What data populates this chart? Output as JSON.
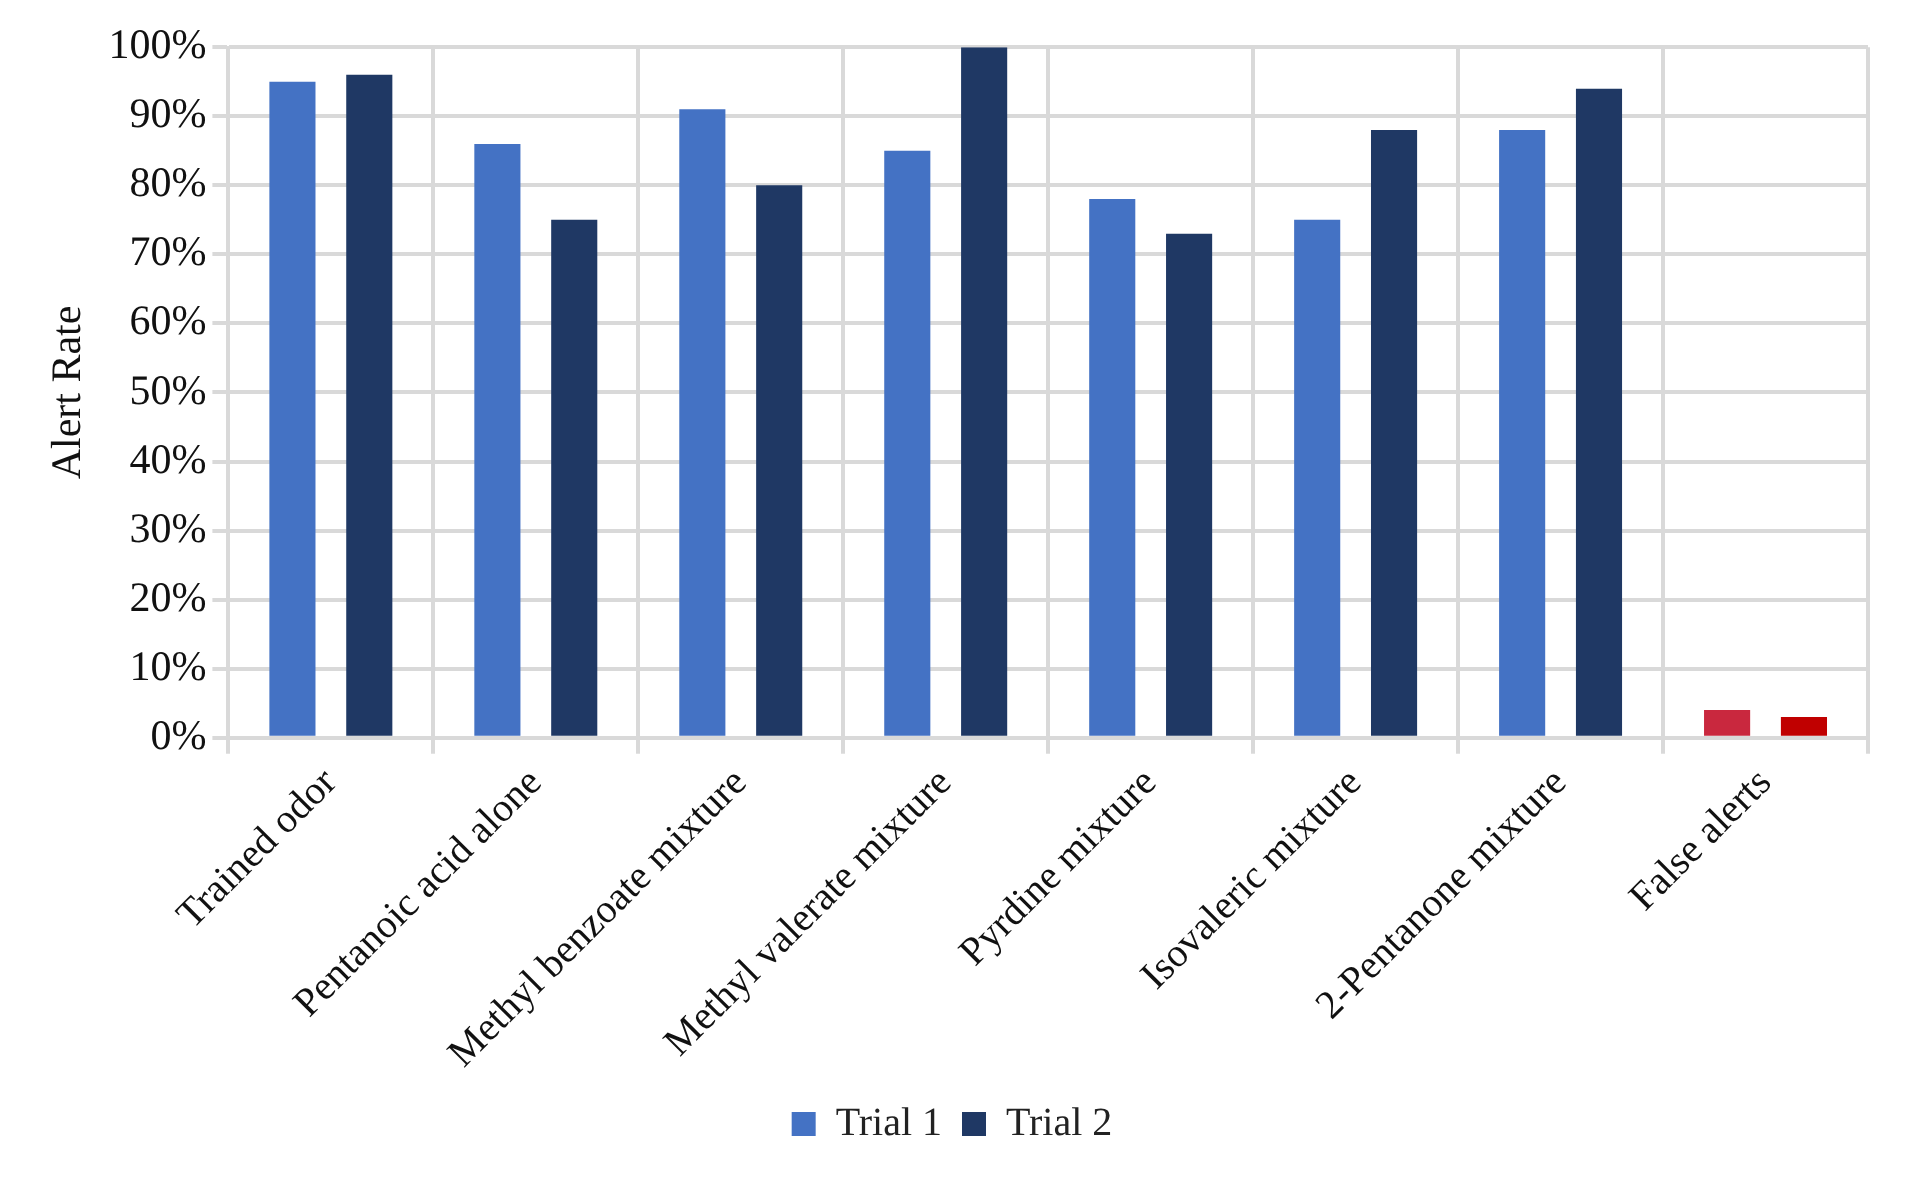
{
  "chart_data": {
    "type": "bar",
    "ylabel": "Alert Rate",
    "categories": [
      "Trained odor",
      "Pentanoic acid alone",
      "Methyl benzoate mixture",
      "Methyl valerate mixture",
      "Pyrdine mixture",
      "Isovaleric mixture",
      "2-Pentanone mixture",
      "False alerts"
    ],
    "series": [
      {
        "name": "Trial 1",
        "color": "#4472c4",
        "colors": [
          "#4472c4",
          "#4472c4",
          "#4472c4",
          "#4472c4",
          "#4472c4",
          "#4472c4",
          "#4472c4",
          "#c9283e"
        ],
        "values": [
          95,
          86,
          91,
          85,
          78,
          75,
          88,
          4
        ]
      },
      {
        "name": "Trial 2",
        "color": "#1f3864",
        "colors": [
          "#1f3864",
          "#1f3864",
          "#1f3864",
          "#1f3864",
          "#1f3864",
          "#1f3864",
          "#1f3864",
          "#c00000"
        ],
        "values": [
          96,
          75,
          80,
          100,
          73,
          88,
          94,
          3
        ]
      }
    ],
    "ylim": [
      0,
      100
    ],
    "yticks": [
      {
        "value": 0,
        "label": "0%"
      },
      {
        "value": 10,
        "label": "10%"
      },
      {
        "value": 20,
        "label": "20%"
      },
      {
        "value": 30,
        "label": "30%"
      },
      {
        "value": 40,
        "label": "40%"
      },
      {
        "value": 50,
        "label": "50%"
      },
      {
        "value": 60,
        "label": "60%"
      },
      {
        "value": 70,
        "label": "70%"
      },
      {
        "value": 80,
        "label": "80%"
      },
      {
        "value": 90,
        "label": "90%"
      },
      {
        "value": 100,
        "label": "100%"
      }
    ],
    "grid": true,
    "legend": "bottom"
  }
}
